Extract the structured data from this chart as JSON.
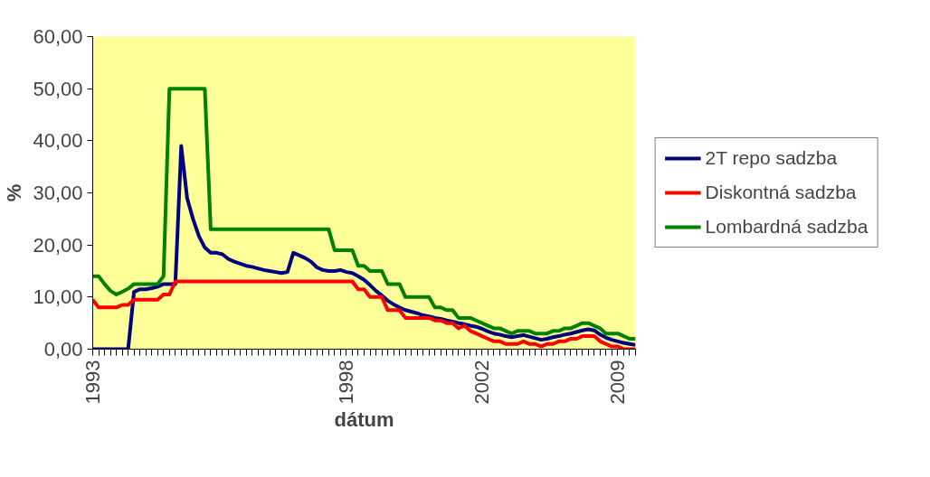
{
  "chart_data": {
    "type": "line",
    "xlabel": "dátum",
    "ylabel": "%",
    "categories": [
      "1993",
      null,
      null,
      null,
      null,
      null,
      null,
      null,
      null,
      null,
      null,
      null,
      null,
      null,
      null,
      null,
      null,
      null,
      null,
      null,
      null,
      null,
      null,
      null,
      null,
      null,
      null,
      null,
      null,
      null,
      null,
      null,
      null,
      null,
      null,
      null,
      null,
      null,
      null,
      null,
      null,
      null,
      null,
      "1998",
      null,
      null,
      null,
      null,
      null,
      null,
      null,
      null,
      null,
      null,
      null,
      null,
      null,
      null,
      null,
      null,
      null,
      null,
      null,
      null,
      null,
      null,
      "2002",
      null,
      null,
      null,
      null,
      null,
      null,
      null,
      null,
      null,
      null,
      null,
      null,
      null,
      null,
      null,
      null,
      null,
      null,
      null,
      null,
      null,
      null,
      "2009",
      null,
      null,
      null
    ],
    "series": [
      {
        "name": "2T repo sadzba",
        "color": "#000080",
        "values": [
          0,
          0,
          0,
          0,
          0,
          0,
          0,
          11,
          11.5,
          11.5,
          11.7,
          12,
          12.5,
          12.5,
          12.5,
          39,
          29,
          25,
          21.7,
          19.5,
          18.5,
          18.5,
          18.2,
          17.3,
          16.8,
          16.4,
          16,
          15.8,
          15.5,
          15.2,
          15,
          14.8,
          14.6,
          14.8,
          18.5,
          18,
          17.5,
          16.8,
          15.7,
          15.2,
          15,
          15,
          15.2,
          14.8,
          14.6,
          14,
          13.3,
          12.3,
          11.2,
          10.3,
          9.3,
          8.6,
          8,
          7.5,
          7.2,
          6.9,
          6.5,
          6.3,
          6,
          5.8,
          5.5,
          5.3,
          5,
          4.8,
          4.5,
          4.3,
          3.9,
          3.4,
          3,
          2.8,
          2.5,
          2.3,
          2.5,
          2.7,
          2.4,
          2.1,
          1.8,
          2,
          2.3,
          2.5,
          2.8,
          3,
          3.3,
          3.6,
          3.8,
          3.6,
          2.8,
          2.2,
          1.8,
          1.5,
          1.2,
          1,
          0.8
        ]
      },
      {
        "name": "Diskontná sadzba",
        "color": "#ff0000",
        "values": [
          9.5,
          8,
          8,
          8,
          8,
          8.5,
          8.5,
          9.5,
          9.5,
          9.5,
          9.5,
          9.5,
          10.5,
          10.5,
          13,
          13,
          13,
          13,
          13,
          13,
          13,
          13,
          13,
          13,
          13,
          13,
          13,
          13,
          13,
          13,
          13,
          13,
          13,
          13,
          13,
          13,
          13,
          13,
          13,
          13,
          13,
          13,
          13,
          13,
          13,
          11.5,
          11.5,
          10,
          10,
          10,
          7.5,
          7.5,
          7.5,
          6,
          6,
          6,
          6,
          6,
          5.5,
          5.5,
          5,
          5,
          4,
          4.5,
          3.5,
          3,
          2.5,
          2,
          1.5,
          1.5,
          1,
          1,
          1,
          1.5,
          1,
          1,
          0.5,
          1,
          1,
          1.5,
          1.5,
          2,
          2,
          2.5,
          2.5,
          2.5,
          1.5,
          1,
          0.5,
          0.5,
          0,
          0,
          0
        ]
      },
      {
        "name": "Lombardná sadzba",
        "color": "#008000",
        "values": [
          14,
          14,
          12.5,
          11.2,
          10.5,
          11,
          11.6,
          12.5,
          12.5,
          12.5,
          12.5,
          12.5,
          14,
          50,
          50,
          50,
          50,
          50,
          50,
          50,
          23,
          23,
          23,
          23,
          23,
          23,
          23,
          23,
          23,
          23,
          23,
          23,
          23,
          23,
          23,
          23,
          23,
          23,
          23,
          23,
          23,
          19,
          19,
          19,
          19,
          16,
          16,
          15,
          15,
          15,
          12.5,
          12.5,
          12.5,
          10,
          10,
          10,
          10,
          10,
          8,
          8,
          7.5,
          7.5,
          6,
          6,
          6,
          5.5,
          5,
          4.5,
          4,
          4,
          3.5,
          3,
          3.5,
          3.5,
          3.5,
          3,
          3,
          3,
          3.5,
          3.5,
          4,
          4,
          4.5,
          5,
          5,
          4.5,
          4,
          3,
          3,
          3,
          2.5,
          2,
          2
        ]
      }
    ],
    "ylim": [
      0,
      60
    ],
    "yticks": [
      {
        "value": 0,
        "label": "0,00"
      },
      {
        "value": 10,
        "label": "10,00"
      },
      {
        "value": 20,
        "label": "20,00"
      },
      {
        "value": 30,
        "label": "30,00"
      },
      {
        "value": 40,
        "label": "40,00"
      },
      {
        "value": 50,
        "label": "50,00"
      },
      {
        "value": 60,
        "label": "60,00"
      }
    ],
    "grid": false,
    "legend": "right",
    "marker": "none",
    "line_style": "solid"
  }
}
